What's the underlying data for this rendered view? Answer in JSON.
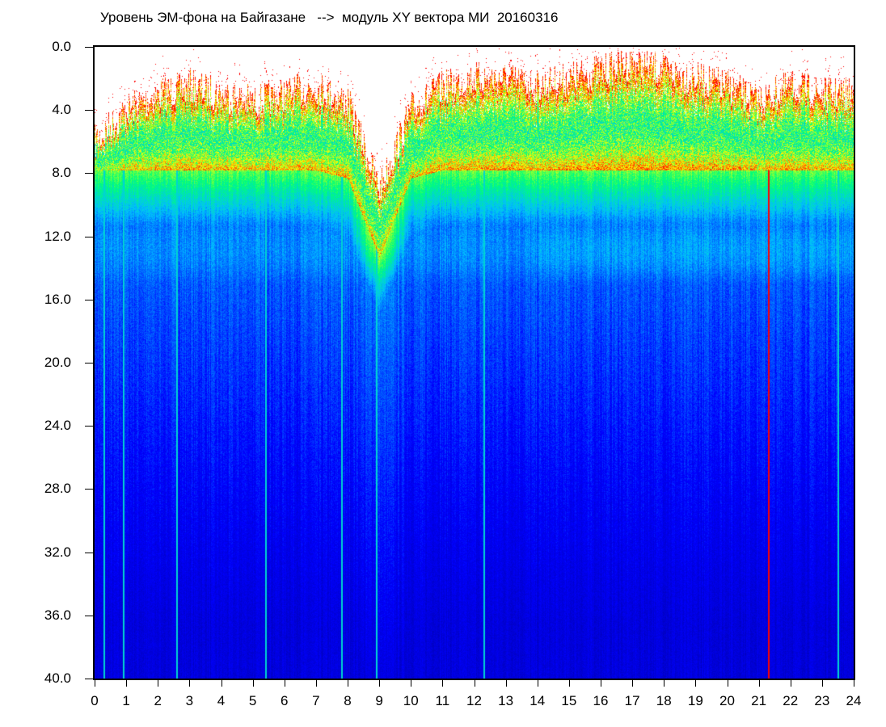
{
  "chart_data": {
    "type": "heatmap",
    "title": "Уровень ЭМ-фона на Байгазане   -->  модуль XY вектора МИ  20160316",
    "xlabel": "",
    "ylabel": "",
    "xlim": [
      0,
      24
    ],
    "ylim": [
      40.0,
      0.0
    ],
    "x_ticks": [
      "0",
      "1",
      "2",
      "3",
      "4",
      "5",
      "6",
      "7",
      "8",
      "9",
      "10",
      "11",
      "12",
      "13",
      "14",
      "15",
      "16",
      "17",
      "18",
      "19",
      "20",
      "21",
      "22",
      "23",
      "24"
    ],
    "y_ticks": [
      "0.0",
      "4.0",
      "8.0",
      "12.0",
      "16.0",
      "20.0",
      "24.0",
      "28.0",
      "32.0",
      "36.0",
      "40.0"
    ],
    "colorscale": [
      "#000080",
      "#0000ff",
      "#00c0ff",
      "#00ff80",
      "#ffff00",
      "#ff0000",
      "#ffffff"
    ],
    "hourly_signal_top": [
      6,
      4,
      3,
      2.5,
      3,
      3.5,
      3,
      2.5,
      3.5,
      9,
      4,
      2.5,
      2,
      2,
      2.5,
      2,
      1.5,
      1,
      1.5,
      2,
      2.5,
      3.5,
      2.5,
      3,
      3
    ],
    "hourly_transition_level": [
      8.5,
      8.5,
      8.5,
      8.5,
      8.5,
      8.5,
      8.5,
      8.5,
      9,
      14,
      9,
      8.5,
      8.5,
      8.5,
      8.5,
      8.5,
      8.5,
      8.5,
      8.5,
      8.5,
      8.5,
      8.5,
      8.5,
      8.5,
      8.5
    ],
    "bright_lines_hours": [
      0.3,
      0.9,
      2.6,
      5.4,
      7.8,
      8.9,
      12.3,
      21.3,
      23.5
    ]
  }
}
